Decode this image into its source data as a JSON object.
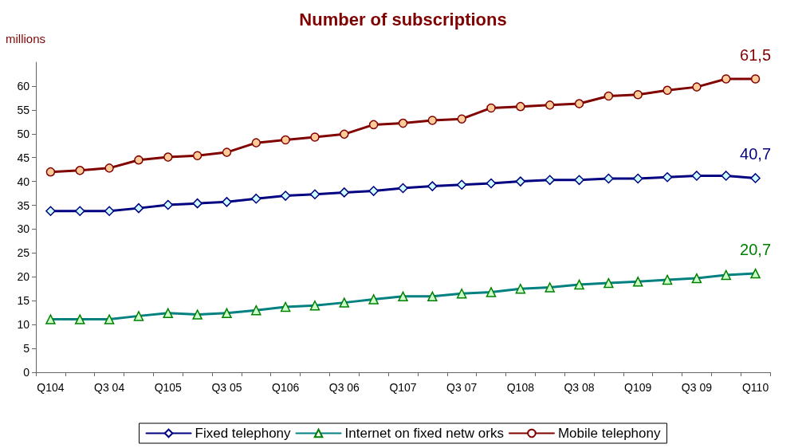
{
  "chart_data": {
    "type": "line",
    "title": "Number of subscriptions",
    "ylabel": "millions",
    "categories": [
      "Q104",
      null,
      "Q3 04",
      null,
      "Q105",
      null,
      "Q3 05",
      null,
      "Q106",
      null,
      "Q3 06",
      null,
      "Q107",
      null,
      "Q3 07",
      null,
      "Q108",
      null,
      "Q3 08",
      null,
      "Q109",
      null,
      "Q3 09",
      null,
      "Q110"
    ],
    "series": [
      {
        "name": "Fixed telephony",
        "color": "#000080",
        "marker": "diamond",
        "values": [
          33.8,
          33.8,
          33.8,
          34.4,
          35.1,
          35.4,
          35.7,
          36.4,
          37.0,
          37.3,
          37.7,
          38.0,
          38.6,
          39.0,
          39.3,
          39.6,
          40.0,
          40.3,
          40.3,
          40.6,
          40.6,
          40.9,
          41.2,
          41.2,
          40.7
        ],
        "value_labels": [
          null,
          null,
          null,
          null,
          null,
          null,
          null,
          null,
          null,
          null,
          null,
          null,
          null,
          null,
          null,
          null,
          null,
          null,
          null,
          null,
          null,
          null,
          null,
          null,
          "40,7"
        ]
      },
      {
        "name": "Internet on fixed netw orks",
        "color": "#008080",
        "marker": "triangle",
        "values": [
          11.1,
          11.1,
          11.1,
          11.8,
          12.4,
          12.1,
          12.4,
          13.0,
          13.7,
          14.0,
          14.6,
          15.3,
          15.9,
          15.9,
          16.5,
          16.8,
          17.5,
          17.8,
          18.4,
          18.7,
          19.0,
          19.4,
          19.7,
          20.4,
          20.7
        ],
        "value_labels": [
          null,
          null,
          null,
          null,
          null,
          null,
          null,
          null,
          null,
          null,
          null,
          null,
          null,
          null,
          null,
          null,
          null,
          null,
          null,
          null,
          null,
          null,
          null,
          null,
          "20,7"
        ]
      },
      {
        "name": "Mobile telephony",
        "color": "#800000",
        "marker": "circle",
        "values": [
          42.0,
          42.3,
          42.8,
          44.5,
          45.1,
          45.4,
          46.1,
          48.1,
          48.7,
          49.3,
          49.9,
          51.9,
          52.2,
          52.8,
          53.1,
          55.4,
          55.7,
          56.0,
          56.3,
          57.9,
          58.2,
          59.1,
          59.8,
          61.5,
          61.5
        ],
        "value_labels": [
          null,
          null,
          null,
          null,
          null,
          null,
          null,
          null,
          null,
          null,
          null,
          null,
          null,
          null,
          null,
          null,
          null,
          null,
          null,
          null,
          null,
          null,
          null,
          null,
          "61,5"
        ]
      }
    ],
    "ylim": [
      0,
      65
    ],
    "yticks": [
      0,
      5,
      10,
      15,
      20,
      25,
      30,
      35,
      40,
      45,
      50,
      55,
      60
    ],
    "grid": false,
    "legend": "bottom",
    "line_style": "solid"
  }
}
